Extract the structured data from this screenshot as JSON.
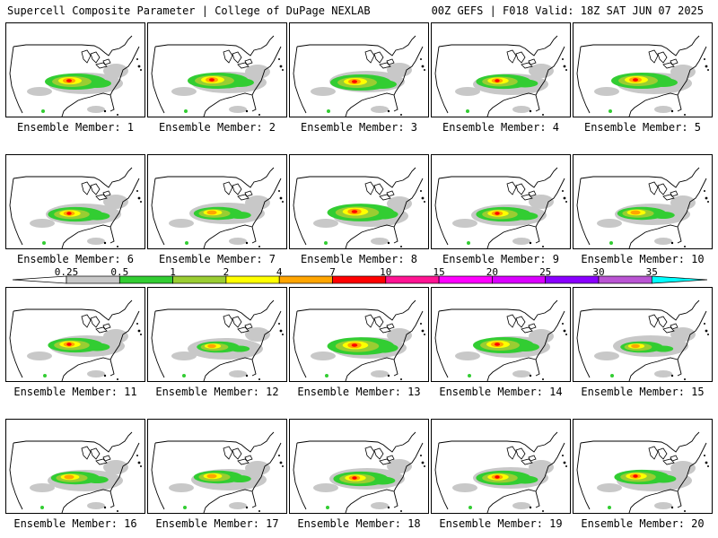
{
  "header": {
    "left": "Supercell Composite Parameter | College of DuPage NEXLAB",
    "right": "00Z GEFS | F018 Valid: 18Z SAT JUN 07 2025"
  },
  "members": [
    {
      "label": "Ensemble Member: 1",
      "intensity": 1.0
    },
    {
      "label": "Ensemble Member: 2",
      "intensity": 1.0
    },
    {
      "label": "Ensemble Member: 3",
      "intensity": 1.0
    },
    {
      "label": "Ensemble Member: 4",
      "intensity": 0.9
    },
    {
      "label": "Ensemble Member: 5",
      "intensity": 1.0
    },
    {
      "label": "Ensemble Member: 6",
      "intensity": 0.9
    },
    {
      "label": "Ensemble Member: 7",
      "intensity": 0.8
    },
    {
      "label": "Ensemble Member: 8",
      "intensity": 1.1
    },
    {
      "label": "Ensemble Member: 9",
      "intensity": 0.9
    },
    {
      "label": "Ensemble Member: 10",
      "intensity": 0.8
    },
    {
      "label": "Ensemble Member: 11",
      "intensity": 0.9
    },
    {
      "label": "Ensemble Member: 12",
      "intensity": 0.7
    },
    {
      "label": "Ensemble Member: 13",
      "intensity": 1.1
    },
    {
      "label": "Ensemble Member: 14",
      "intensity": 1.0
    },
    {
      "label": "Ensemble Member: 15",
      "intensity": 0.7
    },
    {
      "label": "Ensemble Member: 16",
      "intensity": 0.8
    },
    {
      "label": "Ensemble Member: 17",
      "intensity": 0.8
    },
    {
      "label": "Ensemble Member: 18",
      "intensity": 0.9
    },
    {
      "label": "Ensemble Member: 19",
      "intensity": 0.9
    },
    {
      "label": "Ensemble Member: 20",
      "intensity": 0.9
    }
  ],
  "legend": {
    "levels": [
      "0.25",
      "0.5",
      "1",
      "2",
      "4",
      "7",
      "10",
      "15",
      "20",
      "25",
      "30",
      "35"
    ],
    "colors": [
      "#c8c8c8",
      "#32cd32",
      "#9acd32",
      "#ffff00",
      "#ffa500",
      "#ff0000",
      "#ff1493",
      "#ff00ff",
      "#da00ff",
      "#8a00ff",
      "#ba55d3",
      "#00ffff"
    ],
    "underflow_color": "#ffffff",
    "overflow_color": "#00ffff"
  }
}
